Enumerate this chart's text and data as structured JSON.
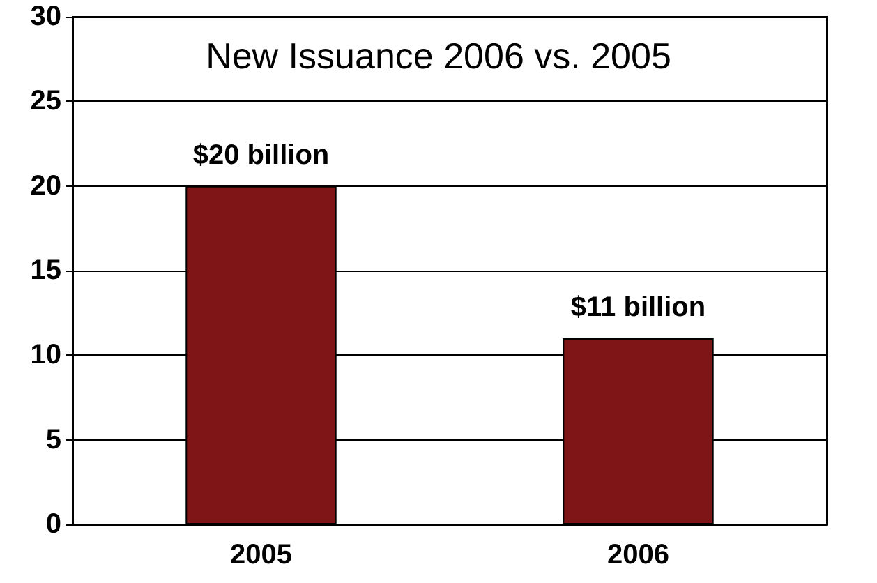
{
  "chart_data": {
    "type": "bar",
    "title": "New Issuance 2006 vs. 2005",
    "categories": [
      "2005",
      "2006"
    ],
    "values": [
      20,
      11
    ],
    "value_labels": [
      "$20 billion",
      "$11 billion"
    ],
    "color": "#7f1517",
    "ylim": [
      0,
      30
    ],
    "yticks": [
      0,
      5,
      10,
      15,
      20,
      25,
      30
    ],
    "grid": "y"
  }
}
